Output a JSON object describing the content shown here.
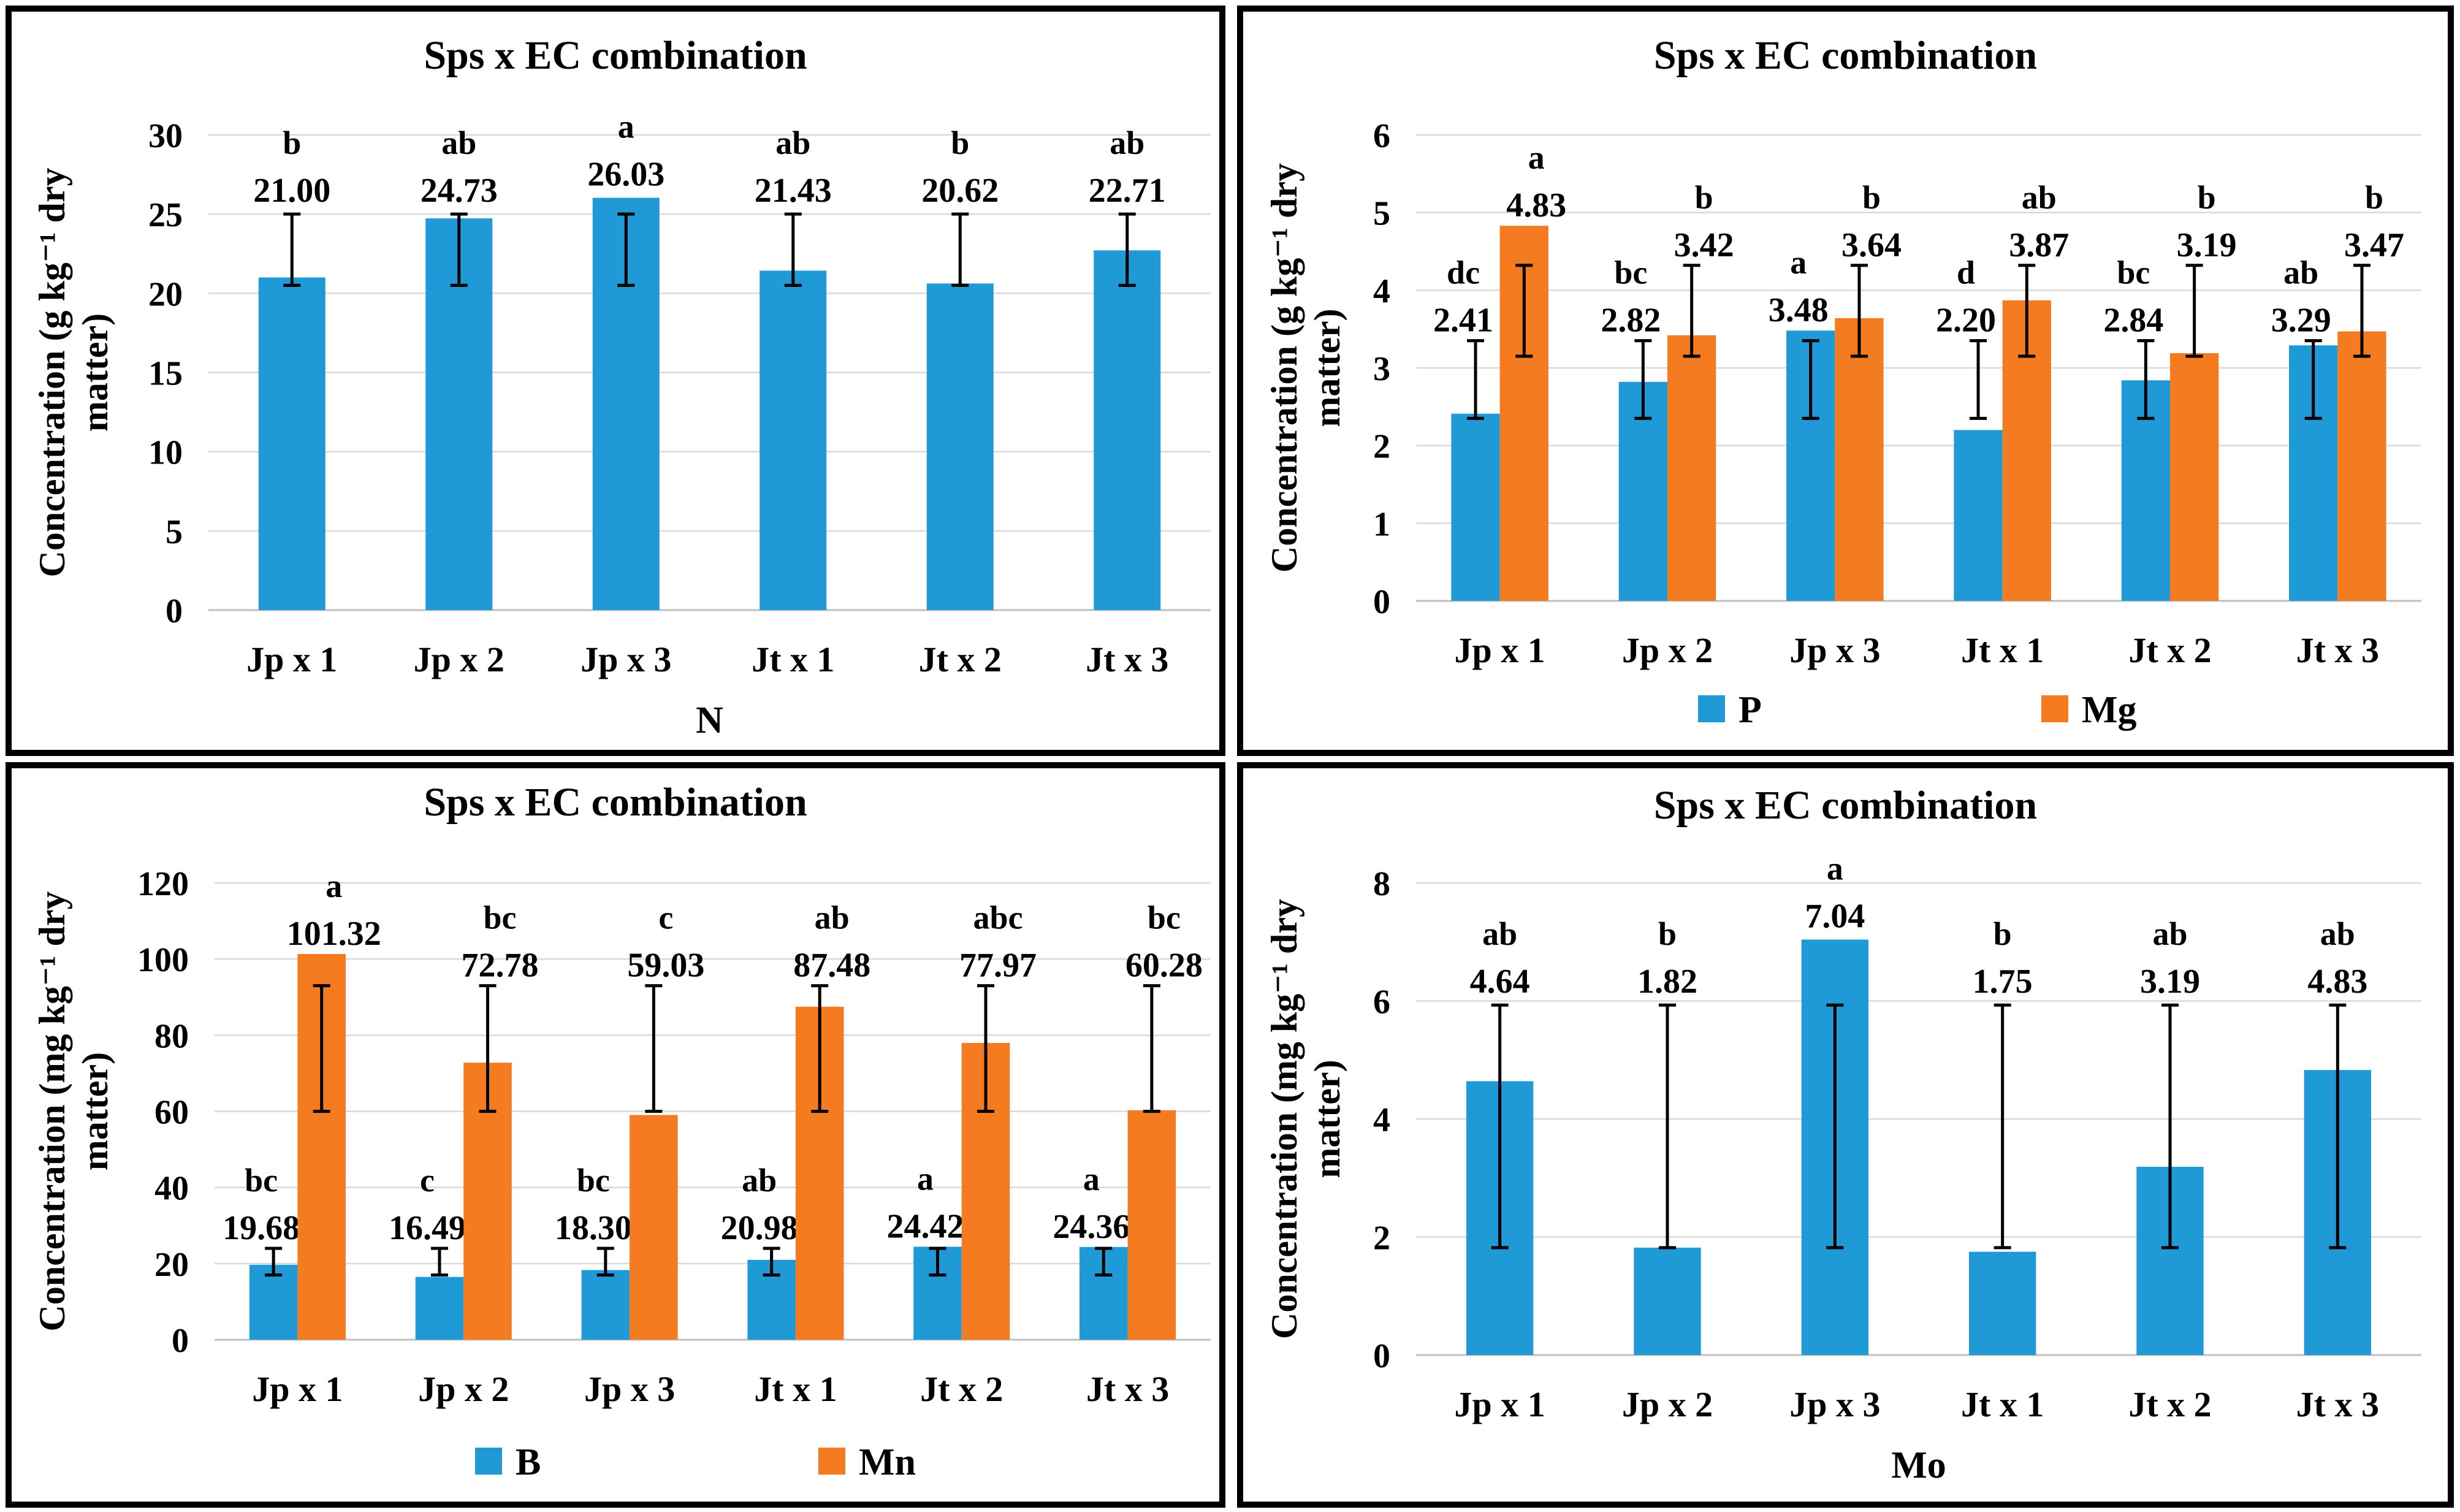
{
  "colors": {
    "blue": "#1f9ad6",
    "orange": "#f47b20",
    "frame": "#000000",
    "grid": "#d9d9d9"
  },
  "chart_data": [
    {
      "type": "bar",
      "title": "Sps x EC combination",
      "ylabel_line1": "Concentration (g kg⁻¹ dry",
      "ylabel_line2": "matter)",
      "xlabel": "N",
      "ylim": [
        0,
        30
      ],
      "yticks": [
        0,
        5,
        10,
        15,
        20,
        25,
        30
      ],
      "categories": [
        "Jp x 1",
        "Jp x 2",
        "Jp x 3",
        "Jt x 1",
        "Jt x 2",
        "Jt x 3"
      ],
      "series": [
        {
          "name": "N",
          "color": "#1f9ad6",
          "values": [
            21.0,
            24.73,
            26.03,
            21.43,
            20.62,
            22.71
          ],
          "labels": [
            "21.00",
            "24.73",
            "26.03",
            "21.43",
            "20.62",
            "22.71"
          ],
          "letters": [
            "b",
            "ab",
            "a",
            "ab",
            "b",
            "ab"
          ],
          "err": [
            [
              20.5,
              25.0
            ],
            [
              20.5,
              25.0
            ],
            [
              20.5,
              25.0
            ],
            [
              20.5,
              25.0
            ],
            [
              20.5,
              25.0
            ],
            [
              20.5,
              25.0
            ]
          ]
        }
      ]
    },
    {
      "type": "bar",
      "title": "Sps x EC combination",
      "ylabel_line1": "Concentration (g kg⁻¹ dry",
      "ylabel_line2": "matter)",
      "ylim": [
        0,
        6
      ],
      "yticks": [
        0,
        1,
        2,
        3,
        4,
        5,
        6
      ],
      "categories": [
        "Jp x 1",
        "Jp x 2",
        "Jp x 3",
        "Jt x 1",
        "Jt x 2",
        "Jt x 3"
      ],
      "series": [
        {
          "name": "P",
          "color": "#1f9ad6",
          "values": [
            2.41,
            2.82,
            3.48,
            2.2,
            2.84,
            3.29
          ],
          "labels": [
            "2.41",
            "2.82",
            "3.48",
            "2.20",
            "2.84",
            "3.29"
          ],
          "letters": [
            "dc",
            "bc",
            "a",
            "d",
            "bc",
            "ab"
          ],
          "err": [
            [
              2.35,
              3.35
            ],
            [
              2.35,
              3.35
            ],
            [
              2.35,
              3.35
            ],
            [
              2.35,
              3.35
            ],
            [
              2.35,
              3.35
            ],
            [
              2.35,
              3.35
            ]
          ]
        },
        {
          "name": "Mg",
          "color": "#f47b20",
          "values": [
            4.83,
            3.42,
            3.64,
            3.87,
            3.19,
            3.47
          ],
          "labels": [
            "4.83",
            "3.42",
            "3.64",
            "3.87",
            "3.19",
            "3.47"
          ],
          "letters": [
            "a",
            "b",
            "b",
            "ab",
            "b",
            "b"
          ],
          "err": [
            [
              3.15,
              4.32
            ],
            [
              3.15,
              4.32
            ],
            [
              3.15,
              4.32
            ],
            [
              3.15,
              4.32
            ],
            [
              3.15,
              4.32
            ],
            [
              3.15,
              4.32
            ]
          ]
        }
      ]
    },
    {
      "type": "bar",
      "title": "Sps x EC combination",
      "ylabel_line1": "Concentration (mg kg⁻¹ dry",
      "ylabel_line2": "matter)",
      "ylim": [
        0,
        120
      ],
      "yticks": [
        0,
        20,
        40,
        60,
        80,
        100,
        120
      ],
      "categories": [
        "Jp x 1",
        "Jp x 2",
        "Jp x 3",
        "Jt x 1",
        "Jt x 2",
        "Jt x 3"
      ],
      "series": [
        {
          "name": "B",
          "color": "#1f9ad6",
          "values": [
            19.68,
            16.49,
            18.3,
            20.98,
            24.42,
            24.36
          ],
          "labels": [
            "19.68",
            "16.49",
            "18.30",
            "20.98",
            "24.42",
            "24.36"
          ],
          "letters": [
            "bc",
            "c",
            "bc",
            "ab",
            "a",
            "a"
          ],
          "err": [
            [
              17,
              24
            ],
            [
              17,
              24
            ],
            [
              17,
              24
            ],
            [
              17,
              24
            ],
            [
              17,
              24
            ],
            [
              17,
              24
            ]
          ]
        },
        {
          "name": "Mn",
          "color": "#f47b20",
          "values": [
            101.32,
            72.78,
            59.03,
            87.48,
            77.97,
            60.28
          ],
          "labels": [
            "101.32",
            "72.78",
            "59.03",
            "87.48",
            "77.97",
            "60.28"
          ],
          "letters": [
            "a",
            "bc",
            "c",
            "ab",
            "abc",
            "bc"
          ],
          "err": [
            [
              60,
              93
            ],
            [
              60,
              93
            ],
            [
              60,
              93
            ],
            [
              60,
              93
            ],
            [
              60,
              93
            ],
            [
              60,
              93
            ]
          ]
        }
      ]
    },
    {
      "type": "bar",
      "title": "Sps x EC combination",
      "ylabel_line1": "Concentration (mg kg⁻¹ dry",
      "ylabel_line2": "matter)",
      "xlabel": "Mo",
      "ylim": [
        0,
        8
      ],
      "yticks": [
        0,
        2,
        4,
        6,
        8
      ],
      "categories": [
        "Jp x 1",
        "Jp x 2",
        "Jp x 3",
        "Jt x 1",
        "Jt x 2",
        "Jt x 3"
      ],
      "series": [
        {
          "name": "Mo",
          "color": "#1f9ad6",
          "values": [
            4.64,
            1.82,
            7.04,
            1.75,
            3.19,
            4.83
          ],
          "labels": [
            "4.64",
            "1.82",
            "7.04",
            "1.75",
            "3.19",
            "4.83"
          ],
          "letters": [
            "ab",
            "b",
            "a",
            "b",
            "ab",
            "ab"
          ],
          "err": [
            [
              1.82,
              5.93
            ],
            [
              1.82,
              5.93
            ],
            [
              1.82,
              5.93
            ],
            [
              1.82,
              5.93
            ],
            [
              1.82,
              5.93
            ],
            [
              1.82,
              5.93
            ]
          ]
        }
      ]
    }
  ]
}
